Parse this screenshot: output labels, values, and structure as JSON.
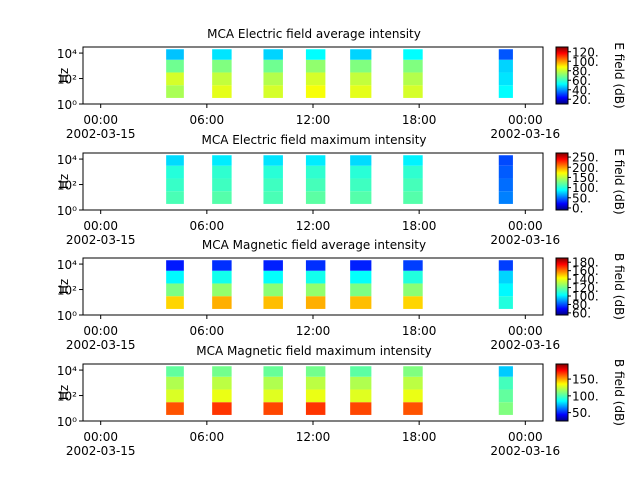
{
  "chart_data": [
    {
      "type": "spectrogram",
      "title": "MCA  Electric field average intensity",
      "ylabel": "Hz",
      "clabel": "E field (dB)",
      "xlim": [
        -1,
        25
      ],
      "xticks": [
        {
          "value": 0,
          "label": "00:00"
        },
        {
          "value": 6,
          "label": "06:00"
        },
        {
          "value": 12,
          "label": "12:00"
        },
        {
          "value": 18,
          "label": "18:00"
        },
        {
          "value": 24,
          "label": "00:00"
        }
      ],
      "xdates": [
        {
          "value": 0,
          "label": "2002-03-15"
        },
        {
          "value": 24,
          "label": "2002-03-16"
        }
      ],
      "ylim": [
        1,
        30000
      ],
      "log_y": true,
      "yticks": [
        {
          "value": 1,
          "label": "10⁰"
        },
        {
          "value": 100,
          "label": "10²"
        },
        {
          "value": 10000,
          "label": "10⁴"
        }
      ],
      "freq_edges": [
        3,
        30,
        300,
        3000,
        20000
      ],
      "colormap": "jet",
      "clim": [
        10,
        130
      ],
      "cticks": [
        {
          "value": 20,
          "label": "20."
        },
        {
          "value": 40,
          "label": "40."
        },
        {
          "value": 60,
          "label": "60."
        },
        {
          "value": 80,
          "label": "80."
        },
        {
          "value": 100,
          "label": "100."
        },
        {
          "value": 120,
          "label": "120."
        }
      ],
      "segments": [
        {
          "start": 3.7,
          "end": 4.7,
          "values": [
            75,
            80,
            68,
            48
          ]
        },
        {
          "start": 6.3,
          "end": 7.4,
          "values": [
            82,
            78,
            70,
            52
          ]
        },
        {
          "start": 9.2,
          "end": 10.3,
          "values": [
            80,
            76,
            68,
            50
          ]
        },
        {
          "start": 11.6,
          "end": 12.7,
          "values": [
            84,
            80,
            72,
            55
          ]
        },
        {
          "start": 14.1,
          "end": 15.3,
          "values": [
            82,
            78,
            70,
            50
          ]
        },
        {
          "start": 17.1,
          "end": 18.2,
          "values": [
            80,
            76,
            70,
            55
          ]
        },
        {
          "start": 22.5,
          "end": 23.3,
          "values": [
            55,
            52,
            50,
            35
          ]
        }
      ]
    },
    {
      "type": "spectrogram",
      "title": "MCA  Electric field maximum intensity",
      "ylabel": "Hz",
      "clabel": "E field (dB)",
      "xlim": [
        -1,
        25
      ],
      "xticks": [
        {
          "value": 0,
          "label": "00:00"
        },
        {
          "value": 6,
          "label": "06:00"
        },
        {
          "value": 12,
          "label": "12:00"
        },
        {
          "value": 18,
          "label": "18:00"
        },
        {
          "value": 24,
          "label": "00:00"
        }
      ],
      "xdates": [
        {
          "value": 0,
          "label": "2002-03-15"
        },
        {
          "value": 24,
          "label": "2002-03-16"
        }
      ],
      "ylim": [
        1,
        30000
      ],
      "log_y": true,
      "yticks": [
        {
          "value": 1,
          "label": "10⁰"
        },
        {
          "value": 100,
          "label": "10²"
        },
        {
          "value": 10000,
          "label": "10⁴"
        }
      ],
      "freq_edges": [
        3,
        30,
        300,
        3000,
        20000
      ],
      "colormap": "jet",
      "clim": [
        -10,
        270
      ],
      "cticks": [
        {
          "value": 0,
          "label": "0."
        },
        {
          "value": 50,
          "label": "50."
        },
        {
          "value": 100,
          "label": "100."
        },
        {
          "value": 150,
          "label": "150."
        },
        {
          "value": 200,
          "label": "200."
        },
        {
          "value": 250,
          "label": "250."
        }
      ],
      "segments": [
        {
          "start": 3.7,
          "end": 4.7,
          "values": [
            115,
            110,
            105,
            85
          ]
        },
        {
          "start": 6.3,
          "end": 7.4,
          "values": [
            118,
            112,
            108,
            90
          ]
        },
        {
          "start": 9.2,
          "end": 10.3,
          "values": [
            115,
            112,
            106,
            88
          ]
        },
        {
          "start": 11.6,
          "end": 12.7,
          "values": [
            120,
            114,
            108,
            90
          ]
        },
        {
          "start": 14.1,
          "end": 15.3,
          "values": [
            118,
            112,
            106,
            85
          ]
        },
        {
          "start": 17.1,
          "end": 18.2,
          "values": [
            118,
            114,
            108,
            92
          ]
        },
        {
          "start": 22.5,
          "end": 23.3,
          "values": [
            60,
            55,
            50,
            45
          ]
        }
      ]
    },
    {
      "type": "spectrogram",
      "title": "MCA  Magnetic field average intensity",
      "ylabel": "Hz",
      "clabel": "B field (dB)",
      "xlim": [
        -1,
        25
      ],
      "xticks": [
        {
          "value": 0,
          "label": "00:00"
        },
        {
          "value": 6,
          "label": "06:00"
        },
        {
          "value": 12,
          "label": "12:00"
        },
        {
          "value": 18,
          "label": "18:00"
        },
        {
          "value": 24,
          "label": "00:00"
        }
      ],
      "xdates": [
        {
          "value": 0,
          "label": "2002-03-15"
        },
        {
          "value": 24,
          "label": "2002-03-16"
        }
      ],
      "ylim": [
        1,
        30000
      ],
      "log_y": true,
      "yticks": [
        {
          "value": 1,
          "label": "10⁰"
        },
        {
          "value": 100,
          "label": "10²"
        },
        {
          "value": 10000,
          "label": "10⁴"
        }
      ],
      "freq_edges": [
        3,
        30,
        300,
        3000,
        20000
      ],
      "colormap": "jet",
      "clim": [
        55,
        190
      ],
      "cticks": [
        {
          "value": 60,
          "label": "60."
        },
        {
          "value": 80,
          "label": "80."
        },
        {
          "value": 100,
          "label": "100."
        },
        {
          "value": 120,
          "label": "120."
        },
        {
          "value": 140,
          "label": "140."
        },
        {
          "value": 160,
          "label": "160."
        },
        {
          "value": 180,
          "label": "180."
        }
      ],
      "segments": [
        {
          "start": 3.7,
          "end": 4.7,
          "values": [
            145,
            122,
            105,
            75
          ]
        },
        {
          "start": 6.3,
          "end": 7.4,
          "values": [
            150,
            125,
            108,
            78
          ]
        },
        {
          "start": 9.2,
          "end": 10.3,
          "values": [
            148,
            124,
            106,
            76
          ]
        },
        {
          "start": 11.6,
          "end": 12.7,
          "values": [
            150,
            125,
            108,
            78
          ]
        },
        {
          "start": 14.1,
          "end": 15.3,
          "values": [
            148,
            122,
            106,
            76
          ]
        },
        {
          "start": 17.1,
          "end": 18.2,
          "values": [
            145,
            124,
            110,
            80
          ]
        },
        {
          "start": 22.5,
          "end": 23.3,
          "values": [
            110,
            105,
            100,
            80
          ]
        }
      ]
    },
    {
      "type": "spectrogram",
      "title": "MCA  Magnetic field maximum intensity",
      "ylabel": "Hz",
      "clabel": "B field (dB)",
      "xlim": [
        -1,
        25
      ],
      "xticks": [
        {
          "value": 0,
          "label": "00:00"
        },
        {
          "value": 6,
          "label": "06:00"
        },
        {
          "value": 12,
          "label": "12:00"
        },
        {
          "value": 18,
          "label": "18:00"
        },
        {
          "value": 24,
          "label": "00:00"
        }
      ],
      "xdates": [
        {
          "value": 0,
          "label": "2002-03-15"
        },
        {
          "value": 24,
          "label": "2002-03-16"
        }
      ],
      "ylim": [
        1,
        30000
      ],
      "log_y": true,
      "yticks": [
        {
          "value": 1,
          "label": "10⁰"
        },
        {
          "value": 100,
          "label": "10²"
        },
        {
          "value": 10000,
          "label": "10⁴"
        }
      ],
      "freq_edges": [
        3,
        30,
        300,
        3000,
        20000
      ],
      "colormap": "jet",
      "clim": [
        25,
        195
      ],
      "cticks": [
        {
          "value": 50,
          "label": "50."
        },
        {
          "value": 100,
          "label": "100."
        },
        {
          "value": 150,
          "label": "150."
        }
      ],
      "segments": [
        {
          "start": 3.7,
          "end": 4.7,
          "values": [
            160,
            125,
            118,
            105
          ]
        },
        {
          "start": 6.3,
          "end": 7.4,
          "values": [
            165,
            128,
            120,
            108
          ]
        },
        {
          "start": 9.2,
          "end": 10.3,
          "values": [
            162,
            126,
            118,
            106
          ]
        },
        {
          "start": 11.6,
          "end": 12.7,
          "values": [
            165,
            128,
            120,
            108
          ]
        },
        {
          "start": 14.1,
          "end": 15.3,
          "values": [
            162,
            126,
            118,
            104
          ]
        },
        {
          "start": 17.1,
          "end": 18.2,
          "values": [
            160,
            128,
            120,
            110
          ]
        },
        {
          "start": 22.5,
          "end": 23.3,
          "values": [
            110,
            105,
            100,
            80
          ]
        }
      ]
    }
  ]
}
